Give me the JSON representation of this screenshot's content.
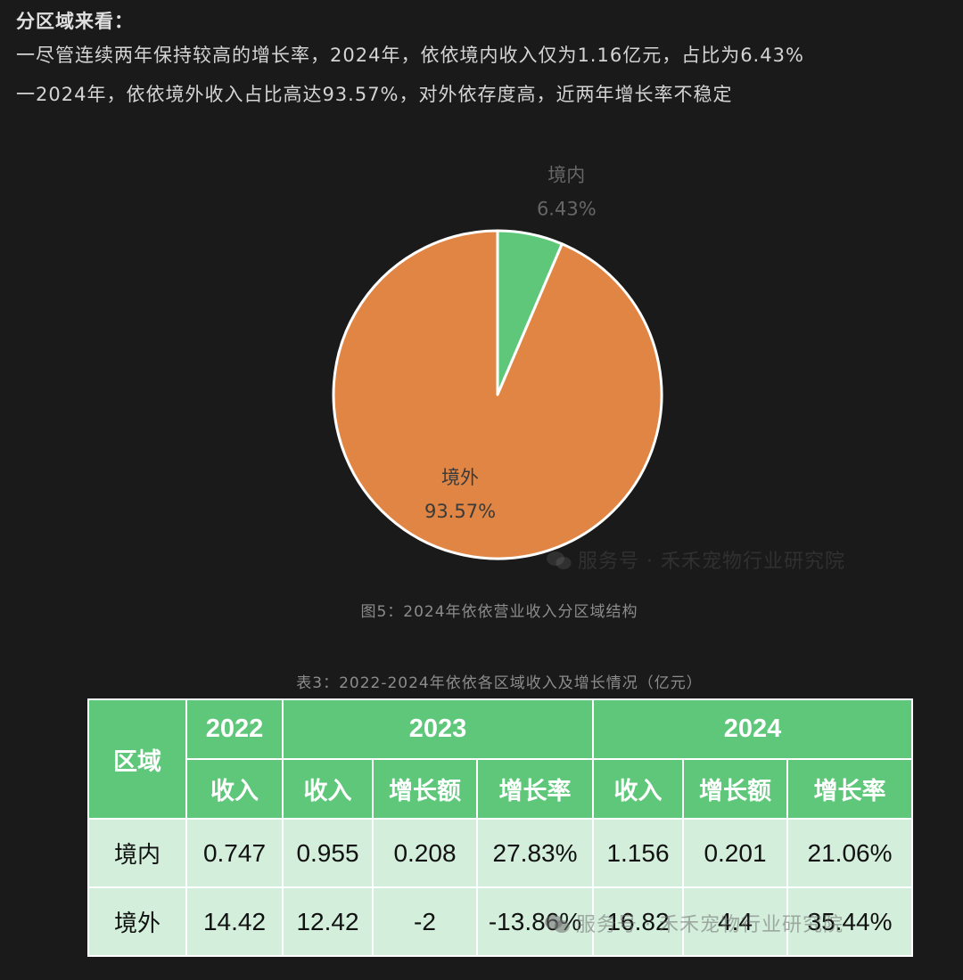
{
  "intro": {
    "heading": "分区域来看：",
    "lines": [
      "一尽管连续两年保持较高的增长率，2024年，依依境内收入仅为1.16亿元，占比为6.43%",
      "一2024年，依依境外收入占比高达93.57%，对外依存度高，近两年增长率不稳定"
    ]
  },
  "chart_data": {
    "type": "pie",
    "title": "",
    "slices": [
      {
        "label": "境内",
        "value": 6.43,
        "value_label": "6.43%",
        "color": "#5ec77a",
        "label_color": "#666666"
      },
      {
        "label": "境外",
        "value": 93.57,
        "value_label": "93.57%",
        "color": "#e08543",
        "label_color": "#3a3a3a"
      }
    ],
    "start_angle": "12 o'clock",
    "direction": "clockwise",
    "slice_border_color": "#ffffff"
  },
  "watermark": {
    "icon": "wechat-icon",
    "chart_text": "服务号 · 禾禾宠物行业研究院",
    "table_text": "服务号 · 禾禾宠物行业研究院"
  },
  "figure_caption": "图5：2024年依依营业收入分区域结构",
  "table": {
    "caption": "表3：2022-2024年依依各区域收入及增长情况（亿元）",
    "region_header": "区域",
    "years": [
      "2022",
      "2023",
      "2024"
    ],
    "subheaders": [
      "收入",
      "收入",
      "增长额",
      "增长率",
      "收入",
      "增长额",
      "增长率"
    ],
    "rows": [
      {
        "region": "境内",
        "cells": [
          "0.747",
          "0.955",
          "0.208",
          "27.83%",
          "1.156",
          "0.201",
          "21.06%"
        ]
      },
      {
        "region": "境外",
        "cells": [
          "14.42",
          "12.42",
          "-2",
          "-13.86%",
          "16.82",
          "4.4",
          "35.44%"
        ]
      }
    ]
  },
  "colors": {
    "background": "#1a1a1a",
    "header_green": "#5ec77a",
    "body_green": "#d3eedb",
    "pie_green": "#5ec77a",
    "pie_orange": "#e08543"
  }
}
